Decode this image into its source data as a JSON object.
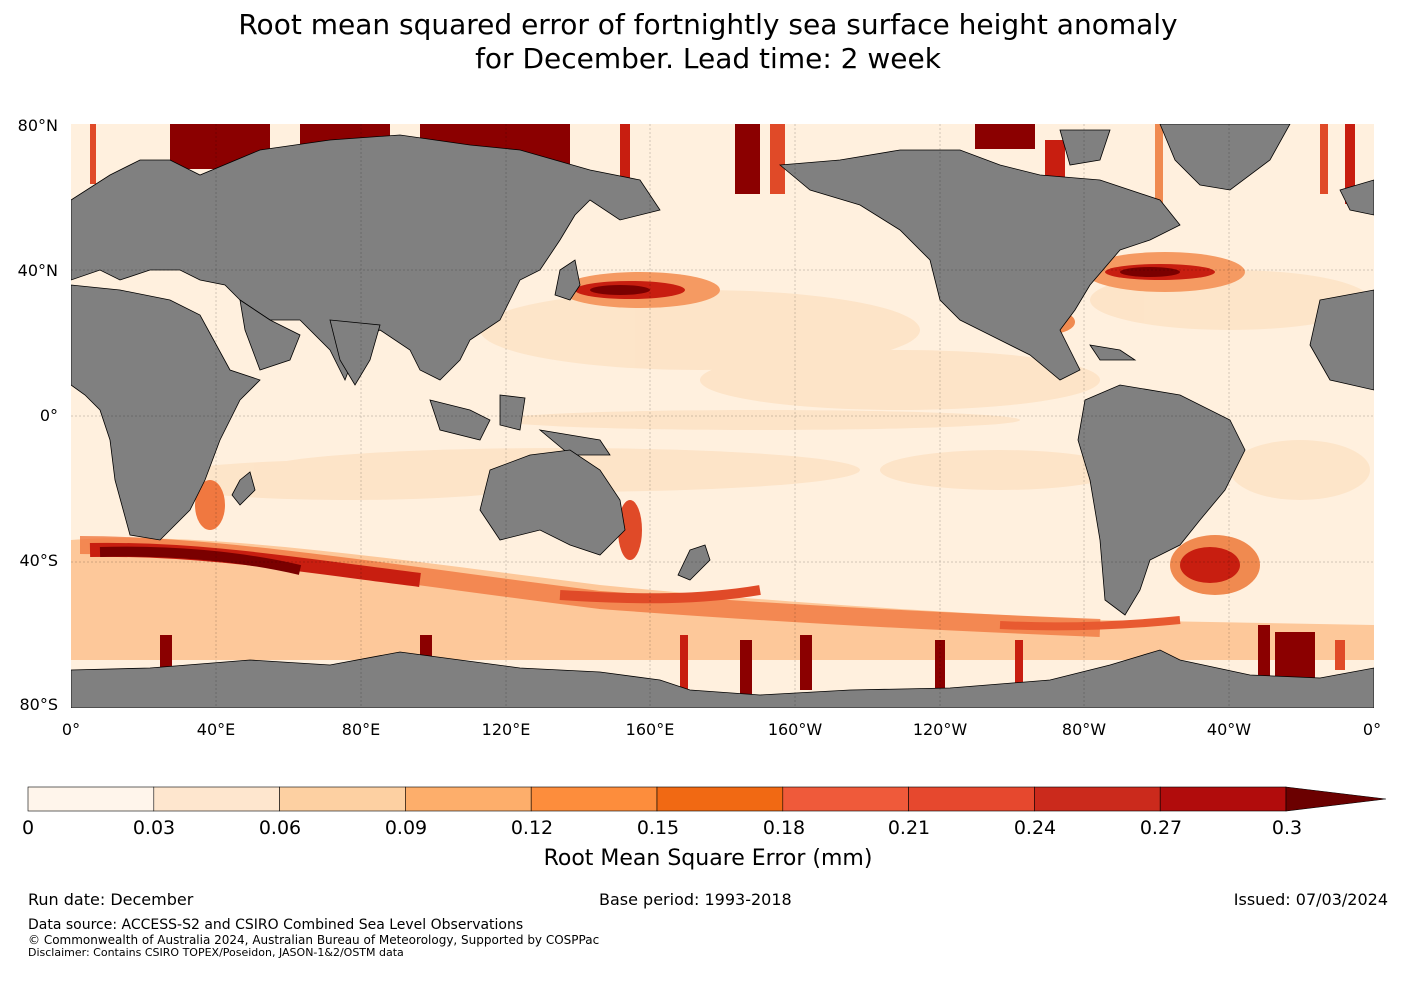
{
  "title": {
    "line1": "Root mean squared error of fortnightly sea surface height anomaly",
    "line2": "for December. Lead time: 2 week"
  },
  "map": {
    "lat_labels": [
      "80°N",
      "40°N",
      "0°",
      "40°S",
      "80°S"
    ],
    "lon_labels": [
      "0°",
      "40°E",
      "80°E",
      "120°E",
      "160°E",
      "160°W",
      "120°W",
      "80°W",
      "40°W",
      "0°"
    ],
    "land_color": "#808080",
    "ocean_base_color": "#fff0de"
  },
  "colorbar": {
    "ticks": [
      "0",
      "0.03",
      "0.06",
      "0.09",
      "0.12",
      "0.15",
      "0.18",
      "0.21",
      "0.24",
      "0.27",
      "0.3"
    ],
    "colors": [
      "#fff5eb",
      "#fee6ce",
      "#fdd0a2",
      "#fdae6b",
      "#fd8d3c",
      "#f16913",
      "#ef5a3a",
      "#e6482e",
      "#cb2a1c",
      "#b10c0c",
      "#8a0000"
    ],
    "extend_color": "#6b0000",
    "label": "Root Mean Square Error (mm)"
  },
  "footer": {
    "run_date": "Run date: December",
    "base_period": "Base period: 1993-2018",
    "issued": "Issued: 07/03/2024",
    "data_source": "Data source: ACCESS-S2 and CSIRO Combined Sea Level Observations",
    "copyright": "© Commonwealth of Australia 2024, Australian Bureau of Meteorology, Supported by COSPPac",
    "disclaimer": "Disclaimer: Contains CSIRO TOPEX/Poseidon, JASON-1&2/OSTM data"
  }
}
